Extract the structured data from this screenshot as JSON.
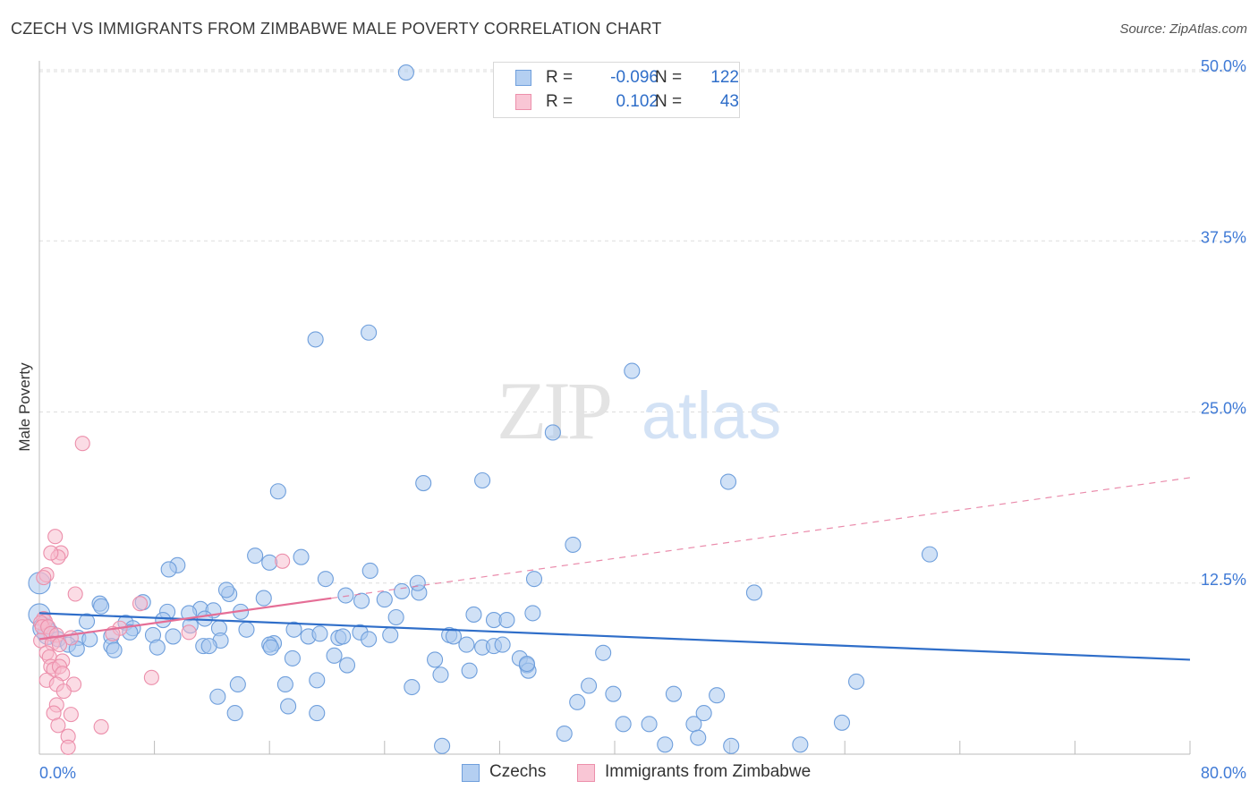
{
  "title": "CZECH VS IMMIGRANTS FROM ZIMBABWE MALE POVERTY CORRELATION CHART",
  "source": "Source: ZipAtlas.com",
  "watermark": {
    "zip": "ZIP",
    "atlas": "atlas"
  },
  "legend": {
    "czechs": {
      "r_label": "R =",
      "r_value": "-0.096",
      "n_label": "N =",
      "n_value": "122"
    },
    "zimbabwe": {
      "r_label": "R =",
      "r_value": "0.102",
      "n_label": "N =",
      "n_value": "43"
    }
  },
  "colors": {
    "czechs_fill": "#a9c8ee",
    "czechs_stroke": "#6f9fdc",
    "czechs_line": "#2f6ec9",
    "zimbabwe_fill": "#f7b9cb",
    "zimbabwe_stroke": "#ec8fab",
    "zimbabwe_line": "#e56e96",
    "axis_label": "#3f7ad6",
    "grid": "#dddddd"
  },
  "chart_data": {
    "type": "scatter",
    "title": "CZECH VS IMMIGRANTS FROM ZIMBABWE MALE POVERTY CORRELATION CHART",
    "xlabel": "",
    "ylabel": "Male Poverty",
    "xlim": [
      0,
      80
    ],
    "ylim": [
      0,
      50
    ],
    "x_tick_labels": [
      "0.0%",
      "80.0%"
    ],
    "y_ticks": [
      12.5,
      25.0,
      37.5,
      50.0
    ],
    "y_tick_labels": [
      "12.5%",
      "25.0%",
      "37.5%",
      "50.0%"
    ],
    "grid": true,
    "legend_position": "top-center",
    "series": [
      {
        "name": "Czechs",
        "r": -0.096,
        "n": 122,
        "trend": {
          "x": [
            0,
            80
          ],
          "y": [
            10.3,
            6.9
          ]
        },
        "points": [
          [
            25.5,
            49.8
          ],
          [
            19.2,
            30.3
          ],
          [
            22.9,
            30.8
          ],
          [
            41.2,
            28.0
          ],
          [
            35.7,
            23.5
          ],
          [
            16.6,
            19.2
          ],
          [
            26.7,
            19.8
          ],
          [
            30.8,
            20.0
          ],
          [
            47.9,
            19.9
          ],
          [
            37.1,
            15.3
          ],
          [
            61.9,
            14.6
          ],
          [
            15.0,
            14.5
          ],
          [
            18.2,
            14.4
          ],
          [
            16.0,
            14.0
          ],
          [
            9.6,
            13.8
          ],
          [
            9.0,
            13.5
          ],
          [
            23.0,
            13.4
          ],
          [
            19.9,
            12.8
          ],
          [
            34.4,
            12.8
          ],
          [
            25.2,
            11.9
          ],
          [
            49.7,
            11.8
          ],
          [
            13.2,
            11.7
          ],
          [
            15.6,
            11.4
          ],
          [
            24.0,
            11.3
          ],
          [
            22.4,
            11.2
          ],
          [
            7.2,
            11.1
          ],
          [
            4.2,
            11.0
          ],
          [
            4.3,
            10.8
          ],
          [
            8.9,
            10.4
          ],
          [
            11.2,
            10.6
          ],
          [
            12.1,
            10.5
          ],
          [
            14.0,
            10.4
          ],
          [
            10.4,
            10.3
          ],
          [
            24.8,
            10.0
          ],
          [
            30.2,
            10.2
          ],
          [
            31.6,
            9.8
          ],
          [
            34.3,
            10.3
          ],
          [
            0.0,
            12.5
          ],
          [
            0.0,
            10.2
          ],
          [
            3.3,
            9.7
          ],
          [
            6.0,
            9.6
          ],
          [
            8.6,
            9.8
          ],
          [
            6.5,
            9.2
          ],
          [
            11.5,
            9.9
          ],
          [
            10.5,
            9.4
          ],
          [
            12.5,
            9.2
          ],
          [
            14.4,
            9.1
          ],
          [
            17.7,
            9.1
          ],
          [
            0.6,
            8.8
          ],
          [
            1.3,
            8.4
          ],
          [
            2.7,
            8.5
          ],
          [
            2.0,
            8.0
          ],
          [
            3.5,
            8.4
          ],
          [
            5.0,
            8.6
          ],
          [
            7.9,
            8.7
          ],
          [
            9.3,
            8.6
          ],
          [
            12.6,
            8.3
          ],
          [
            16.3,
            8.1
          ],
          [
            16.0,
            8.0
          ],
          [
            18.7,
            8.6
          ],
          [
            19.5,
            8.8
          ],
          [
            20.8,
            8.5
          ],
          [
            21.1,
            8.6
          ],
          [
            22.3,
            8.9
          ],
          [
            22.9,
            8.4
          ],
          [
            24.4,
            8.7
          ],
          [
            28.5,
            8.7
          ],
          [
            28.8,
            8.6
          ],
          [
            29.7,
            8.0
          ],
          [
            30.8,
            7.8
          ],
          [
            31.6,
            7.9
          ],
          [
            32.2,
            8.0
          ],
          [
            2.6,
            7.7
          ],
          [
            5.0,
            7.9
          ],
          [
            5.2,
            7.6
          ],
          [
            8.2,
            7.8
          ],
          [
            11.4,
            7.9
          ],
          [
            11.8,
            7.9
          ],
          [
            16.1,
            7.8
          ],
          [
            17.6,
            7.0
          ],
          [
            20.5,
            7.2
          ],
          [
            21.4,
            6.5
          ],
          [
            33.4,
            7.0
          ],
          [
            33.9,
            6.5
          ],
          [
            34.0,
            6.1
          ],
          [
            33.9,
            6.6
          ],
          [
            39.2,
            7.4
          ],
          [
            27.9,
            5.8
          ],
          [
            29.9,
            6.1
          ],
          [
            17.1,
            5.1
          ],
          [
            19.3,
            5.4
          ],
          [
            25.9,
            4.9
          ],
          [
            13.8,
            5.1
          ],
          [
            12.4,
            4.2
          ],
          [
            39.9,
            4.4
          ],
          [
            44.1,
            4.4
          ],
          [
            47.1,
            4.3
          ],
          [
            56.8,
            5.3
          ],
          [
            37.4,
            3.8
          ],
          [
            17.3,
            3.5
          ],
          [
            19.3,
            3.0
          ],
          [
            13.6,
            3.0
          ],
          [
            40.6,
            2.2
          ],
          [
            42.4,
            2.2
          ],
          [
            45.5,
            2.2
          ],
          [
            46.2,
            3.0
          ],
          [
            55.8,
            2.3
          ],
          [
            36.5,
            1.5
          ],
          [
            45.8,
            1.2
          ],
          [
            43.5,
            0.7
          ],
          [
            48.1,
            0.6
          ],
          [
            52.9,
            0.7
          ],
          [
            28.0,
            0.6
          ],
          [
            32.5,
            9.8
          ],
          [
            26.4,
            11.8
          ],
          [
            21.3,
            11.6
          ],
          [
            27.5,
            6.9
          ],
          [
            38.2,
            5.0
          ],
          [
            13.0,
            12.0
          ],
          [
            6.3,
            8.9
          ],
          [
            26.3,
            12.5
          ],
          [
            0.3,
            9.2
          ]
        ]
      },
      {
        "name": "Immigrants from Zimbabwe",
        "r": 0.102,
        "n": 43,
        "trend": {
          "x": [
            0,
            80
          ],
          "y": [
            8.4,
            20.2
          ]
        },
        "trend_solid_until_x": 20.3,
        "points": [
          [
            3.0,
            22.7
          ],
          [
            1.1,
            15.9
          ],
          [
            1.5,
            14.7
          ],
          [
            1.3,
            14.4
          ],
          [
            0.8,
            14.7
          ],
          [
            16.9,
            14.1
          ],
          [
            0.5,
            13.1
          ],
          [
            0.3,
            12.9
          ],
          [
            2.5,
            11.7
          ],
          [
            0.3,
            9.9
          ],
          [
            0.4,
            9.7
          ],
          [
            0.1,
            9.6
          ],
          [
            0.2,
            9.3
          ],
          [
            0.6,
            9.3
          ],
          [
            0.8,
            8.8
          ],
          [
            1.2,
            8.7
          ],
          [
            2.2,
            8.5
          ],
          [
            0.1,
            8.3
          ],
          [
            0.9,
            8.1
          ],
          [
            1.4,
            8.0
          ],
          [
            5.6,
            9.2
          ],
          [
            5.1,
            8.8
          ],
          [
            10.4,
            8.9
          ],
          [
            0.5,
            7.4
          ],
          [
            0.7,
            7.1
          ],
          [
            1.6,
            6.8
          ],
          [
            0.8,
            6.4
          ],
          [
            1.0,
            6.2
          ],
          [
            1.4,
            6.4
          ],
          [
            1.6,
            5.9
          ],
          [
            0.5,
            5.4
          ],
          [
            1.2,
            5.1
          ],
          [
            2.4,
            5.1
          ],
          [
            1.7,
            4.6
          ],
          [
            7.8,
            5.6
          ],
          [
            1.2,
            3.6
          ],
          [
            1.0,
            3.0
          ],
          [
            2.2,
            2.9
          ],
          [
            1.3,
            2.1
          ],
          [
            4.3,
            2.0
          ],
          [
            2.0,
            1.3
          ],
          [
            2.0,
            0.5
          ],
          [
            7.0,
            11.0
          ]
        ]
      }
    ]
  },
  "bottom_legend": {
    "czechs": "Czechs",
    "zimbabwe": "Immigrants from Zimbabwe"
  }
}
